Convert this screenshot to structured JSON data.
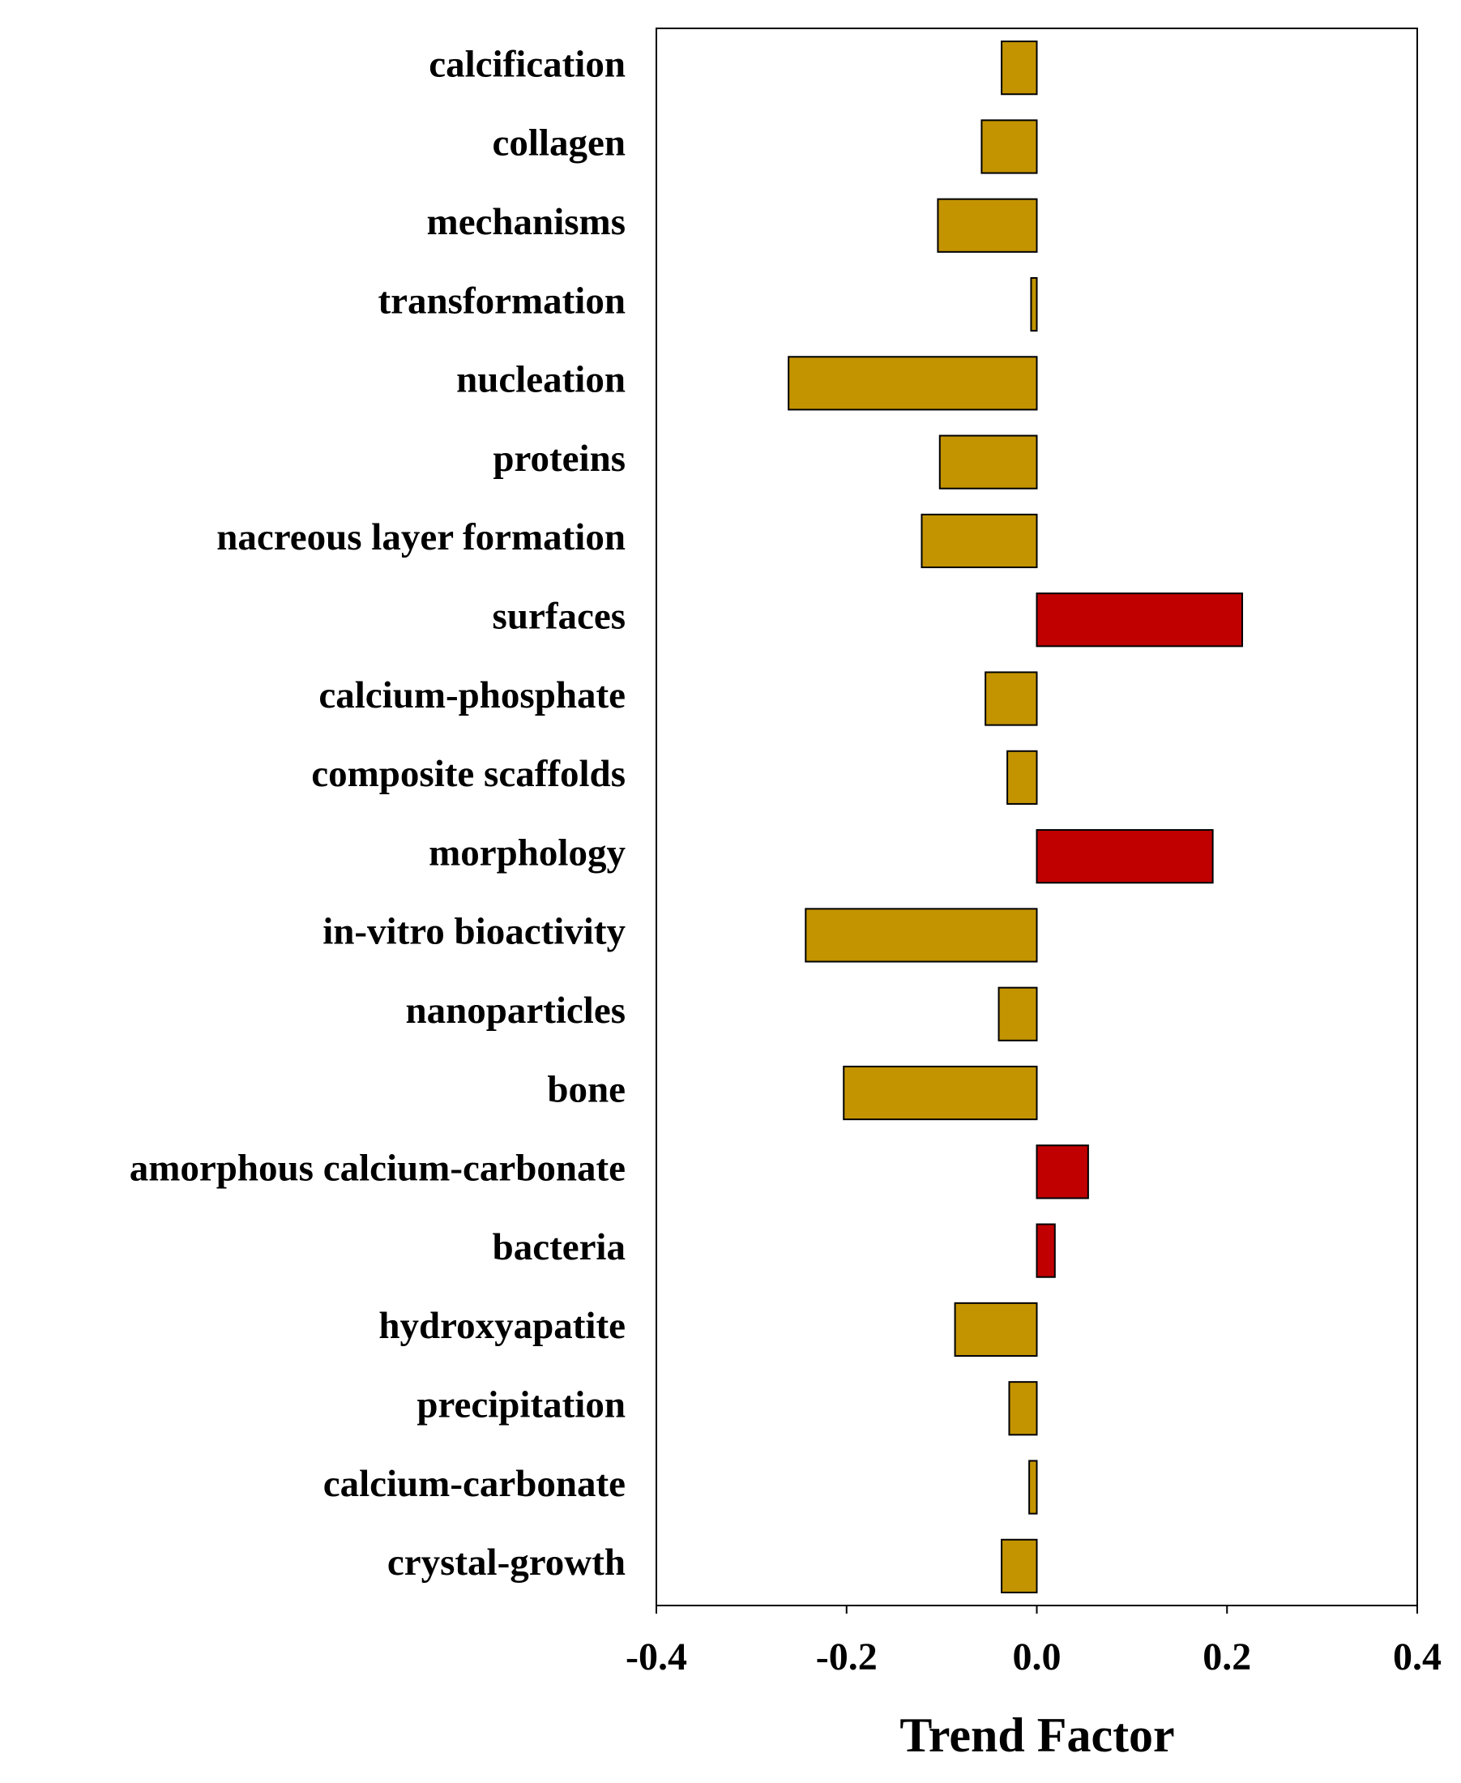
{
  "chart_data": {
    "type": "barh",
    "categories": [
      "calcification",
      "collagen",
      "mechanisms",
      "transformation",
      "nucleation",
      "proteins",
      "nacreous layer formation",
      "surfaces",
      "calcium-phosphate",
      "composite scaffolds",
      "morphology",
      "in-vitro bioactivity",
      "nanoparticles",
      "bone",
      "amorphous calcium-carbonate",
      "bacteria",
      "hydroxyapatite",
      "precipitation",
      "calcium-carbonate",
      "crystal-growth"
    ],
    "values": [
      -0.037,
      -0.058,
      -0.104,
      -0.006,
      -0.261,
      -0.102,
      -0.121,
      0.216,
      -0.054,
      -0.031,
      0.185,
      -0.243,
      -0.04,
      -0.203,
      0.054,
      0.019,
      -0.086,
      -0.029,
      -0.008,
      -0.037
    ],
    "negative_color": "#c39400",
    "positive_color": "#c00000",
    "xlabel": "Trend Factor",
    "xlim": [
      -0.4,
      0.4
    ],
    "xticks": [
      -0.4,
      -0.2,
      {
        "value": 0,
        "label": "0.0"
      },
      0.2,
      0.4
    ]
  }
}
